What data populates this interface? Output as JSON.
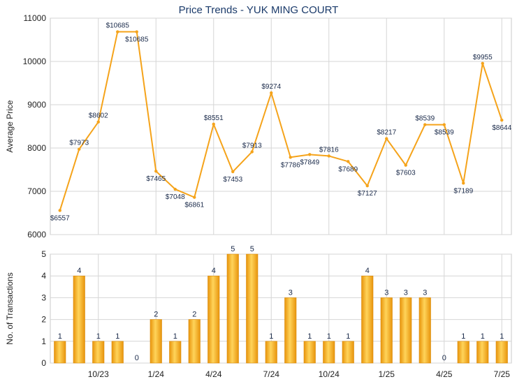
{
  "title": "Price Trends - YUK MING COURT",
  "chart_data": [
    {
      "type": "line",
      "title": "Price Trends - YUK MING COURT",
      "ylabel": "Average Price",
      "ylim": [
        6000,
        11000
      ],
      "yticks": [
        6000,
        7000,
        8000,
        9000,
        10000,
        11000
      ],
      "grid": true,
      "color": "#f5a31a",
      "x_tick_labels": [
        "10/23",
        "1/24",
        "4/24",
        "7/24",
        "10/24",
        "1/25",
        "4/25",
        "7/25"
      ],
      "series": [
        {
          "values": [
            6557,
            7973,
            8602,
            10685,
            10685,
            7465,
            7048,
            6861,
            8551,
            7453,
            7913,
            9274,
            7786,
            7849,
            7816,
            7689,
            7127,
            8217,
            7603,
            8539,
            8539,
            7189,
            9955,
            8644
          ],
          "labels": [
            "$6557",
            "$7973",
            "$8602",
            "$10685",
            "$10685",
            "$7465",
            "$7048",
            "$6861",
            "$8551",
            "$7453",
            "$7913",
            "$9274",
            "$7786",
            "$7849",
            "$7816",
            "$7689",
            "$7127",
            "$8217",
            "$7603",
            "$8539",
            "$8539",
            "$7189",
            "$9955",
            "$8644"
          ]
        }
      ]
    },
    {
      "type": "bar",
      "ylabel": "No. of Transactions",
      "ylim": [
        0,
        5
      ],
      "yticks": [
        0,
        1,
        2,
        3,
        4,
        5
      ],
      "grid": true,
      "color": "#f5a31a",
      "x_tick_labels": [
        "10/23",
        "1/24",
        "4/24",
        "7/24",
        "10/24",
        "1/25",
        "4/25",
        "7/25"
      ],
      "values": [
        1,
        4,
        1,
        1,
        0,
        2,
        1,
        2,
        4,
        5,
        5,
        1,
        3,
        1,
        1,
        1,
        4,
        3,
        3,
        3,
        0,
        1,
        1,
        1
      ]
    }
  ]
}
